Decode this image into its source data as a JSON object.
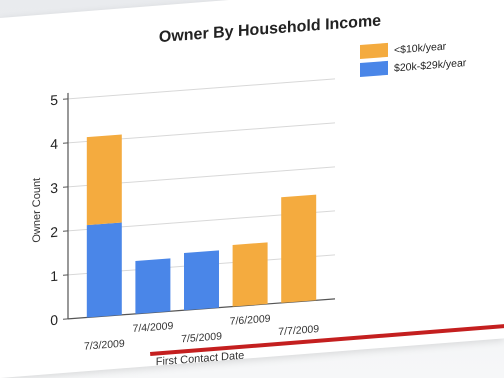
{
  "chart_data": {
    "type": "bar",
    "stacked": true,
    "title": "Owner By Household Income",
    "xlabel": "First Contact Date",
    "ylabel": "Owner Count",
    "ylim": [
      0,
      5
    ],
    "yticks": [
      "0",
      "1",
      "2",
      "3",
      "4",
      "5"
    ],
    "categories": [
      "7/3/2009",
      "7/4/2009",
      "7/5/2009",
      "7/6/2009",
      "7/7/2009"
    ],
    "series": [
      {
        "name": "$20k-$29k/year",
        "color": "#4a86e8",
        "values": [
          2.1,
          1.2,
          1.3,
          0,
          0
        ]
      },
      {
        "name": "<$10k/year",
        "color": "#f4ab3f",
        "values": [
          2.0,
          0,
          0,
          1.4,
          2.4
        ]
      }
    ],
    "legend_order": [
      "<$10k/year",
      "$20k-$29k/year"
    ],
    "legend_position": "top-right",
    "grid": true
  }
}
